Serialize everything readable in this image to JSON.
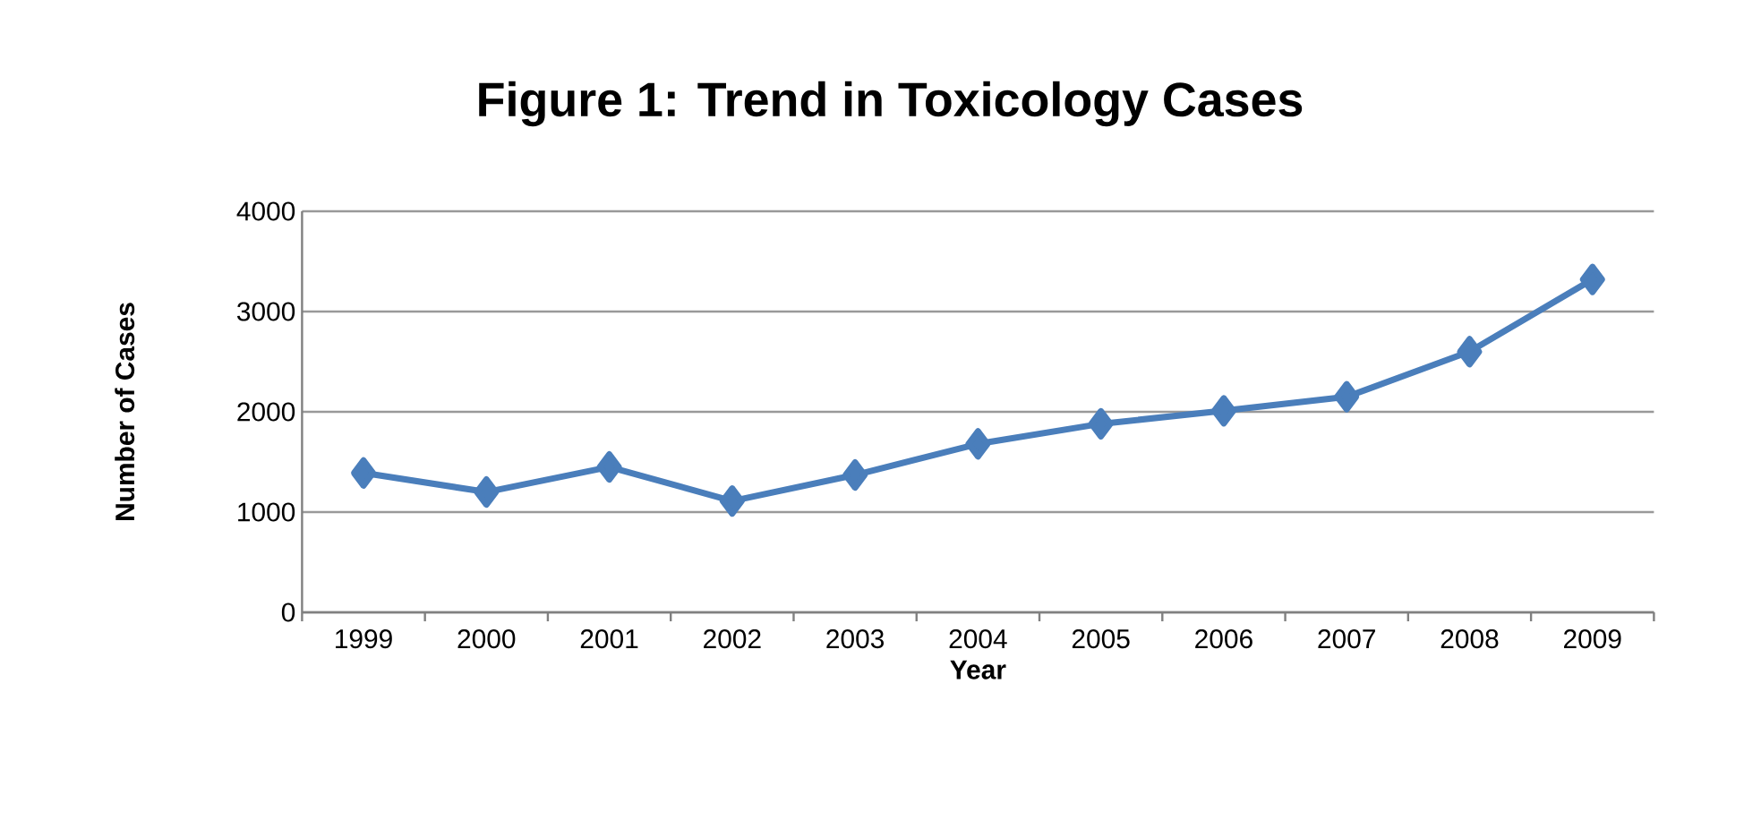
{
  "chart_data": {
    "type": "line",
    "title": "Figure 1: Trend in Toxicology Cases",
    "xlabel": "Year",
    "ylabel": "Number of Cases",
    "categories": [
      "1999",
      "2000",
      "2001",
      "2002",
      "2003",
      "2004",
      "2005",
      "2006",
      "2007",
      "2008",
      "2009"
    ],
    "series": [
      {
        "color": "#4a7ebb",
        "values": [
          1390,
          1200,
          1450,
          1110,
          1370,
          1680,
          1880,
          2010,
          2150,
          2600,
          3320
        ]
      }
    ],
    "ylim": [
      0,
      4000
    ],
    "yticks": [
      0,
      1000,
      2000,
      3000,
      4000
    ],
    "grid": "y",
    "marker": "diamond",
    "line_style": "solid"
  }
}
